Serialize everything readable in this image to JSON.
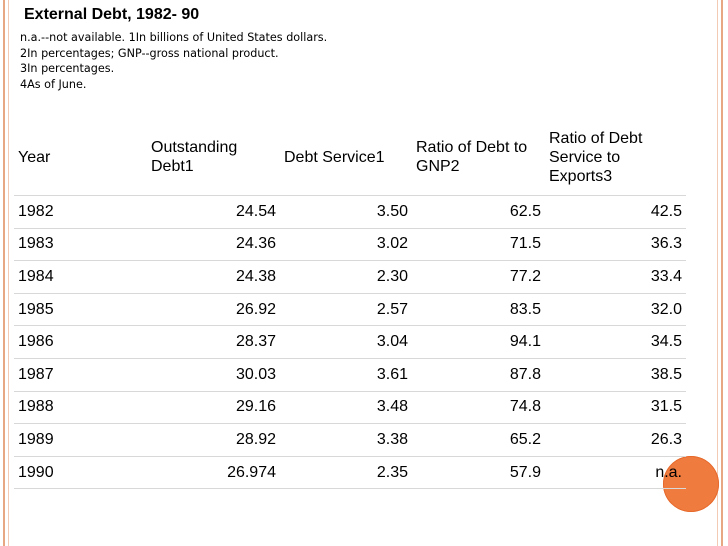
{
  "title": "External Debt, 1982- 90",
  "notes": [
    "n.a.--not available. 1In billions of United States dollars.",
    "2In percentages; GNP--gross national product.",
    "3In percentages.",
    "4As of June."
  ],
  "table": {
    "headers": {
      "year": "Year",
      "outstanding": "Outstanding Debt1",
      "debt_service": "Debt Service1",
      "ratio_gnp": "Ratio of Debt to GNP2",
      "ratio_exports": "Ratio of Debt Service to Exports3"
    },
    "rows": [
      {
        "year": "1982",
        "outstanding": "24.54",
        "debt_service": "3.50",
        "ratio_gnp": "62.5",
        "ratio_exports": "42.5"
      },
      {
        "year": "1983",
        "outstanding": "24.36",
        "debt_service": "3.02",
        "ratio_gnp": "71.5",
        "ratio_exports": "36.3"
      },
      {
        "year": "1984",
        "outstanding": "24.38",
        "debt_service": "2.30",
        "ratio_gnp": "77.2",
        "ratio_exports": "33.4"
      },
      {
        "year": "1985",
        "outstanding": "26.92",
        "debt_service": "2.57",
        "ratio_gnp": "83.5",
        "ratio_exports": "32.0"
      },
      {
        "year": "1986",
        "outstanding": "28.37",
        "debt_service": "3.04",
        "ratio_gnp": "94.1",
        "ratio_exports": "34.5"
      },
      {
        "year": "1987",
        "outstanding": "30.03",
        "debt_service": "3.61",
        "ratio_gnp": "87.8",
        "ratio_exports": "38.5"
      },
      {
        "year": "1988",
        "outstanding": "29.16",
        "debt_service": "3.48",
        "ratio_gnp": "74.8",
        "ratio_exports": "31.5"
      },
      {
        "year": "1989",
        "outstanding": "28.92",
        "debt_service": "3.38",
        "ratio_gnp": "65.2",
        "ratio_exports": "26.3"
      },
      {
        "year": "1990",
        "outstanding": "26.974",
        "debt_service": "2.35",
        "ratio_gnp": "57.9",
        "ratio_exports": "n.a."
      }
    ]
  },
  "colors": {
    "accent_bar": "#e8a783",
    "accent_dot": "#f07b3f"
  }
}
